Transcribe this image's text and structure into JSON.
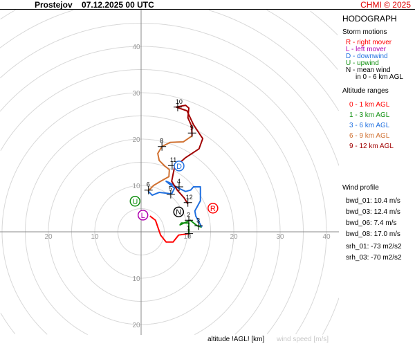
{
  "header": {
    "title": "Prostejov    07.12.2025 00 UTC",
    "credit": "CHMI © 2025"
  },
  "legend": {
    "heading": "HODOGRAPH",
    "storm_title": "Storm motions",
    "storm": [
      {
        "text": "R - right mover",
        "color": "#ff0000"
      },
      {
        "text": "L - left mover",
        "color": "#b000b0"
      },
      {
        "text": "D - downwind",
        "color": "#2070e0"
      },
      {
        "text": "U - upwind",
        "color": "#109010"
      },
      {
        "text": "N - mean wind",
        "color": "#000000"
      }
    ],
    "storm_note": "in 0 - 6 km AGL",
    "alt_title": "Altitude ranges",
    "alt": [
      {
        "text": "0 - 1 km AGL",
        "color": "#ff0000"
      },
      {
        "text": "1 - 3 km AGL",
        "color": "#109010"
      },
      {
        "text": "3 - 6 km AGL",
        "color": "#2070e0"
      },
      {
        "text": "6 - 9 km AGL",
        "color": "#d07030"
      },
      {
        "text": "9 - 12 km AGL",
        "color": "#a00000"
      }
    ],
    "profile_title": "Wind profile",
    "profile": [
      "bwd_01: 10.4 m/s",
      "bwd_03: 12.4 m/s",
      "bwd_06: 7.4 m/s",
      "bwd_08: 17.0 m/s"
    ],
    "srh": [
      "srh_01: -73 m2/s2",
      "srh_03: -70 m2/s2"
    ]
  },
  "footer": {
    "altitude_label": "altitude !AGL! [km]",
    "speed_label": "wind speed [m/s]"
  },
  "chart_data": {
    "type": "line",
    "title": "HODOGRAPH",
    "xlabel": "wind speed [m/s]",
    "ring_step": 5,
    "xlim": [
      -30,
      40
    ],
    "ylim": [
      -22,
      48
    ],
    "ticks": {
      "up": [
        "10",
        "20",
        "30",
        "40"
      ],
      "down": [
        "10",
        "20"
      ],
      "left": [
        "10",
        "20"
      ],
      "right": [
        "10",
        "20",
        "30",
        "40"
      ]
    },
    "series": [
      {
        "name": "0 - 1 km AGL",
        "color": "#ff0000",
        "points": [
          [
            1.9,
            3.4
          ],
          [
            3.1,
            2.5
          ],
          [
            4.2,
            -0.7
          ],
          [
            5.4,
            -2.2
          ],
          [
            6.9,
            -2.2
          ],
          [
            8.1,
            -0.7
          ],
          [
            10.3,
            -0.4
          ]
        ]
      },
      {
        "name": "1 - 3 km AGL",
        "color": "#109010",
        "points": [
          [
            10.3,
            -0.4
          ],
          [
            10.3,
            1.9
          ],
          [
            8.7,
            1.9
          ],
          [
            8.4,
            1.5
          ],
          [
            10.6,
            2.5
          ],
          [
            12.1,
            1.3
          ],
          [
            13.1,
            1.0
          ]
        ]
      },
      {
        "name": "3 - 6 km AGL",
        "color": "#2070e0",
        "points": [
          [
            13.1,
            1.0
          ],
          [
            11.8,
            3.4
          ],
          [
            11.6,
            4.5
          ],
          [
            12.8,
            6.7
          ],
          [
            12.8,
            9.7
          ],
          [
            11.3,
            9.7
          ],
          [
            10.7,
            9.0
          ],
          [
            9.6,
            8.7
          ],
          [
            8.1,
            9.4
          ],
          [
            6.1,
            10.6
          ],
          [
            5.4,
            10.9
          ],
          [
            7.2,
            9.4
          ],
          [
            6.6,
            8.2
          ],
          [
            3.9,
            8.5
          ],
          [
            2.4,
            7.9
          ],
          [
            1.5,
            8.8
          ]
        ]
      },
      {
        "name": "6 - 9 km AGL",
        "color": "#d07030",
        "points": [
          [
            1.5,
            8.8
          ],
          [
            2.7,
            10.0
          ],
          [
            4.2,
            10.9
          ],
          [
            6.0,
            11.9
          ],
          [
            6.1,
            13.4
          ],
          [
            5.1,
            14.2
          ],
          [
            3.9,
            15.4
          ],
          [
            3.6,
            16.9
          ],
          [
            4.5,
            18.4
          ],
          [
            6.3,
            19.3
          ],
          [
            9.1,
            19.4
          ],
          [
            11.0,
            20.7
          ]
        ]
      },
      {
        "name": "9 - 12 km AGL",
        "color": "#a00000",
        "points": [
          [
            11.0,
            20.7
          ],
          [
            10.9,
            22.8
          ],
          [
            10.1,
            24.6
          ],
          [
            10.3,
            26.7
          ],
          [
            9.6,
            27.3
          ],
          [
            7.6,
            26.9
          ],
          [
            9.9,
            26.1
          ],
          [
            11.3,
            23.1
          ],
          [
            13.3,
            20.1
          ],
          [
            12.5,
            17.9
          ],
          [
            9.6,
            16.0
          ],
          [
            7.2,
            13.9
          ],
          [
            6.6,
            10.9
          ],
          [
            7.8,
            9.0
          ],
          [
            9.3,
            7.3
          ],
          [
            10.1,
            6.0
          ]
        ]
      }
    ],
    "altitude_marks": [
      {
        "label": "1",
        "u": 10.3,
        "v": -0.4
      },
      {
        "label": "2",
        "u": 10.3,
        "v": 2.5
      },
      {
        "label": "3",
        "u": 12.4,
        "v": 1.3
      },
      {
        "label": "4",
        "u": 8.2,
        "v": 9.7
      },
      {
        "label": "5",
        "u": 6.4,
        "v": 8.1
      },
      {
        "label": "6",
        "u": 1.6,
        "v": 9.0
      },
      {
        "label": "8",
        "u": 4.5,
        "v": 18.4
      },
      {
        "label": "9",
        "u": 11.0,
        "v": 21.3
      },
      {
        "label": "10",
        "u": 7.9,
        "v": 26.9
      },
      {
        "label": "11",
        "u": 6.7,
        "v": 14.3
      },
      {
        "label": "12",
        "u": 10.1,
        "v": 6.3
      }
    ],
    "storm_motions": [
      {
        "label": "R",
        "u": 15.5,
        "v": 5.1,
        "color": "#ff0000"
      },
      {
        "label": "L",
        "u": 0.4,
        "v": 3.6,
        "color": "#b000b0"
      },
      {
        "label": "D",
        "u": 8.2,
        "v": 14.2,
        "color": "#2070e0"
      },
      {
        "label": "U",
        "u": -1.3,
        "v": 6.6,
        "color": "#109010"
      },
      {
        "label": "N",
        "u": 8.1,
        "v": 4.3,
        "color": "#000000"
      }
    ]
  }
}
